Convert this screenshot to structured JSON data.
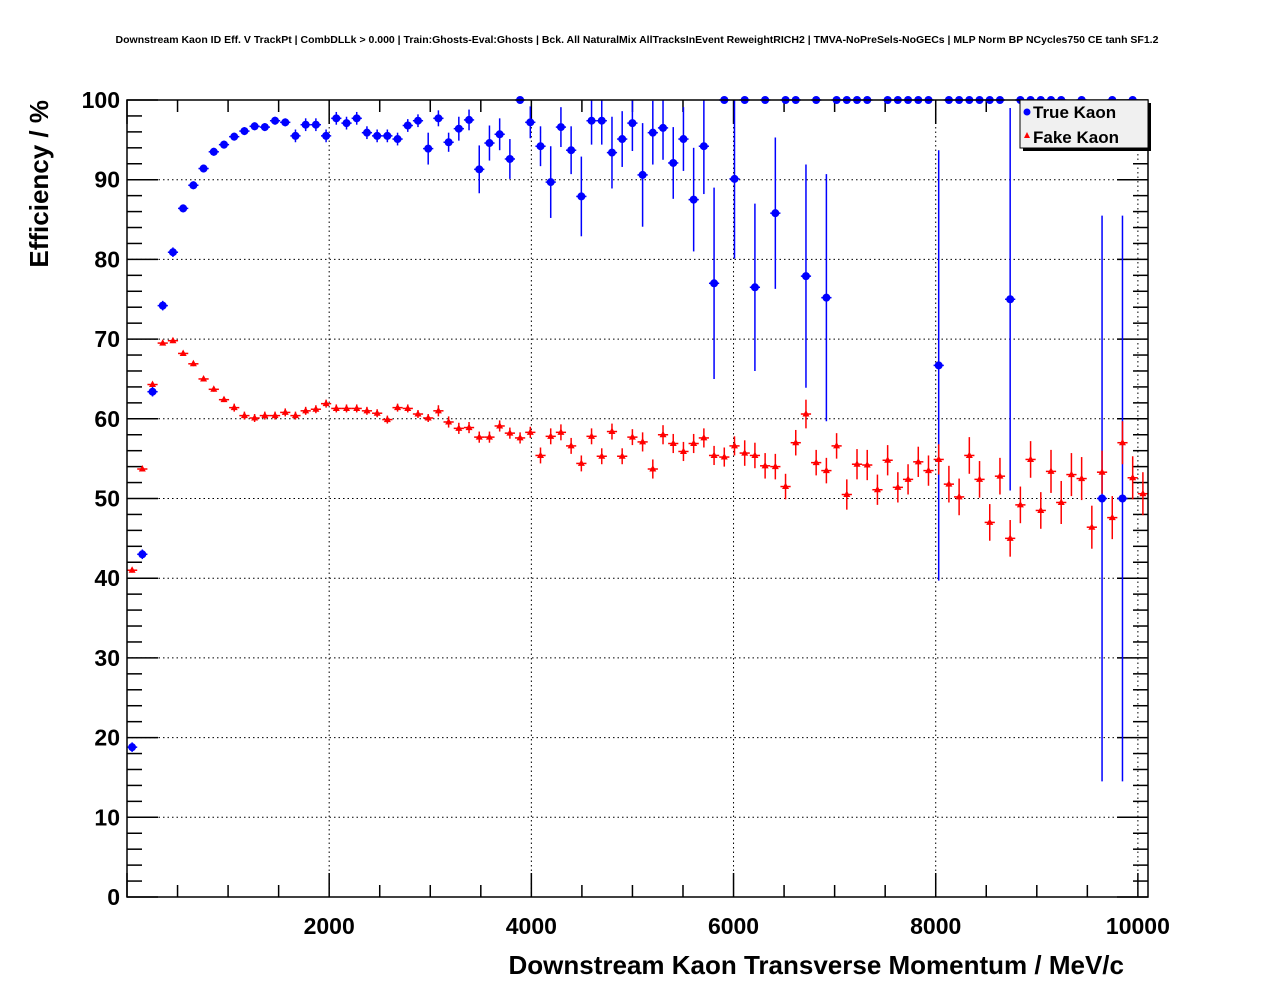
{
  "chart_data": {
    "type": "scatter",
    "title": "Downstream Kaon ID Eff. V TrackPt | CombDLLk > 0.000 | Train:Ghosts-Eval:Ghosts | Bck. All NaturalMix AllTracksInEvent ReweightRICH2 | TMVA-NoPreSels-NoGECs | MLP Norm BP NCycles750 CE tanh SF1.2",
    "xlabel": "Downstream Kaon Transverse Momentum / MeV/c",
    "ylabel": "Efficiency / %",
    "xlim": [
      0,
      10100
    ],
    "ylim": [
      0,
      100
    ],
    "x_bins": {
      "low": 0,
      "high": 10100,
      "n": 100
    },
    "x_major_ticks": [
      0,
      2000,
      4000,
      6000,
      8000,
      10000
    ],
    "x_tick_labels": [
      "2000",
      "4000",
      "6000",
      "8000",
      "10000"
    ],
    "x_tick_label_values": [
      2000,
      4000,
      6000,
      8000,
      10000
    ],
    "x_minor_step": 500,
    "y_tick_labels": [
      "0",
      "10",
      "20",
      "30",
      "40",
      "50",
      "60",
      "70",
      "80",
      "90",
      "100"
    ],
    "y_tick_label_values": [
      0,
      10,
      20,
      30,
      40,
      50,
      60,
      70,
      80,
      90,
      100
    ],
    "y_minor_step": 2,
    "grid": true,
    "legend_position": "top-right",
    "series": [
      {
        "name": "True Kaon",
        "color": "#0000ff",
        "marker": "circle",
        "values": [
          18.8,
          43.0,
          63.4,
          74.2,
          80.9,
          86.4,
          89.3,
          91.4,
          93.5,
          94.4,
          95.4,
          96.1,
          96.7,
          96.6,
          97.4,
          97.2,
          95.5,
          96.9,
          96.9,
          95.5,
          97.7,
          97.1,
          97.7,
          95.9,
          95.5,
          95.5,
          95.1,
          96.8,
          97.4,
          93.9,
          97.7,
          94.7,
          96.4,
          97.5,
          91.3,
          94.6,
          95.7,
          92.6,
          100,
          97.2,
          94.2,
          89.7,
          96.6,
          93.7,
          87.9,
          97.4,
          97.4,
          93.4,
          95.1,
          97.1,
          90.6,
          95.9,
          96.5,
          92.1,
          95.1,
          87.5,
          94.2,
          77.0,
          100,
          90.1,
          100,
          76.5,
          100,
          85.8,
          100,
          100,
          77.9,
          100,
          75.2,
          100,
          100,
          100,
          100,
          null,
          100,
          100,
          100,
          100,
          100,
          66.7,
          100,
          100,
          100,
          100,
          100,
          100,
          75.0,
          100,
          100,
          100,
          100,
          100,
          null,
          100,
          null,
          50.0,
          100,
          50.0,
          100,
          null
        ],
        "errors": [
          0.6,
          0.6,
          0.6,
          0.6,
          0.6,
          0.5,
          0.5,
          0.5,
          0.5,
          0.5,
          0.5,
          0.5,
          0.5,
          0.5,
          0.5,
          0.5,
          0.8,
          0.8,
          0.8,
          0.8,
          0.8,
          0.8,
          0.8,
          0.8,
          0.8,
          0.8,
          0.8,
          0.8,
          0.8,
          2.0,
          1.0,
          1.2,
          1.5,
          1.3,
          3.0,
          2.2,
          2.0,
          2.5,
          0,
          2.0,
          2.5,
          4.5,
          2.5,
          3.0,
          5.0,
          3.0,
          3.0,
          4.5,
          3.5,
          3.5,
          6.5,
          4.0,
          4.0,
          4.5,
          4.0,
          6.5,
          6.0,
          12.0,
          0,
          10.0,
          0,
          10.5,
          0,
          9.5,
          0,
          0,
          14.0,
          0,
          15.5,
          0,
          0,
          0,
          0,
          0,
          0,
          0,
          0,
          0,
          0,
          27.0,
          0,
          0,
          0,
          0,
          0,
          0,
          24.0,
          0,
          0,
          0,
          0,
          0,
          0,
          0,
          0,
          35.5,
          0,
          35.5,
          0,
          0
        ]
      },
      {
        "name": "Fake Kaon",
        "color": "#ff0000",
        "marker": "triangle",
        "values": [
          41.0,
          53.7,
          64.3,
          69.5,
          69.8,
          68.2,
          66.9,
          65.0,
          63.7,
          62.4,
          61.4,
          60.4,
          60.1,
          60.4,
          60.4,
          60.8,
          60.4,
          61.0,
          61.2,
          61.9,
          61.3,
          61.3,
          61.3,
          61.0,
          60.7,
          59.9,
          61.4,
          61.3,
          60.6,
          60.1,
          61.0,
          59.6,
          58.8,
          58.9,
          57.7,
          57.7,
          59.1,
          58.2,
          57.6,
          58.3,
          55.4,
          57.8,
          58.3,
          56.6,
          54.4,
          57.8,
          55.3,
          58.4,
          55.3,
          57.7,
          57.1,
          53.7,
          58.0,
          56.9,
          55.9,
          56.9,
          57.6,
          55.4,
          55.2,
          56.6,
          55.7,
          55.4,
          54.1,
          54.0,
          51.5,
          57.0,
          60.6,
          54.5,
          53.5,
          56.6,
          50.5,
          54.3,
          54.2,
          51.1,
          54.8,
          51.4,
          52.4,
          54.6,
          53.5,
          54.9,
          51.8,
          50.2,
          55.4,
          52.4,
          47.0,
          52.8,
          45.0,
          49.2,
          54.9,
          48.5,
          53.4,
          49.5,
          53.0,
          52.5,
          46.4,
          53.3,
          47.6,
          57.0,
          52.6,
          50.6
        ],
        "errors": [
          0.3,
          0.3,
          0.3,
          0.3,
          0.3,
          0.3,
          0.3,
          0.3,
          0.3,
          0.3,
          0.5,
          0.5,
          0.5,
          0.5,
          0.5,
          0.5,
          0.5,
          0.5,
          0.5,
          0.5,
          0.5,
          0.5,
          0.5,
          0.5,
          0.5,
          0.5,
          0.5,
          0.5,
          0.5,
          0.5,
          0.7,
          0.7,
          0.7,
          0.7,
          0.7,
          0.7,
          0.7,
          0.7,
          0.7,
          0.7,
          1.0,
          1.0,
          1.0,
          1.0,
          1.0,
          1.0,
          1.0,
          1.0,
          1.0,
          1.0,
          1.2,
          1.2,
          1.2,
          1.2,
          1.2,
          1.2,
          1.2,
          1.2,
          1.2,
          1.2,
          1.6,
          1.6,
          1.6,
          1.6,
          1.6,
          1.6,
          1.8,
          1.6,
          1.6,
          1.6,
          1.9,
          1.9,
          1.9,
          1.9,
          1.9,
          1.9,
          1.9,
          1.9,
          1.9,
          1.9,
          2.3,
          2.3,
          2.3,
          2.3,
          2.3,
          2.3,
          2.3,
          2.3,
          2.3,
          2.3,
          2.7,
          2.7,
          2.7,
          2.7,
          2.7,
          2.7,
          2.7,
          2.7,
          2.7,
          2.7
        ]
      }
    ]
  }
}
